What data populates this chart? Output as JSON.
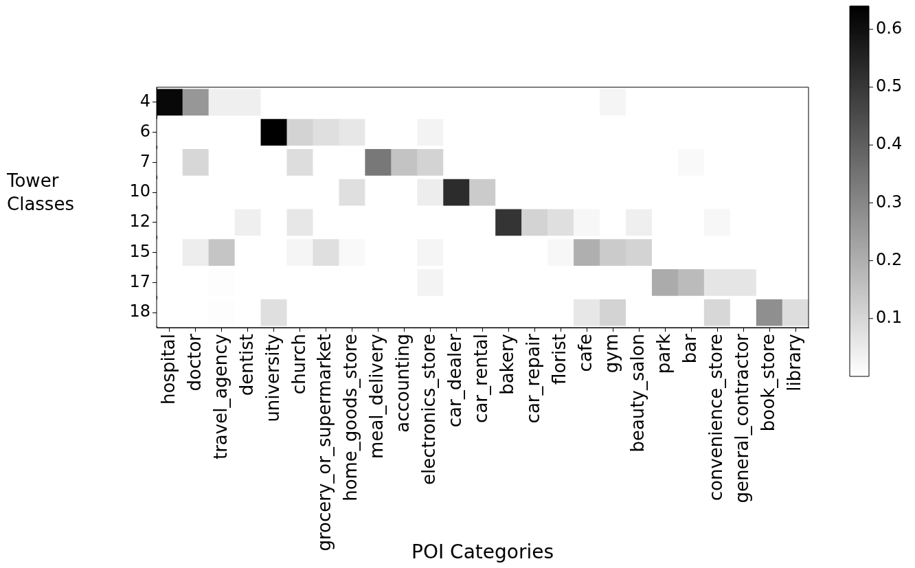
{
  "chart_data": {
    "type": "heatmap",
    "xlabel": "POI Categories",
    "ylabel": "Tower Classes",
    "categories": [
      "hospital",
      "doctor",
      "travel_agency",
      "dentist",
      "university",
      "church",
      "grocery_or_supermarket",
      "home_goods_store",
      "meal_delivery",
      "accounting",
      "electronics_store",
      "car_dealer",
      "car_rental",
      "bakery",
      "car_repair",
      "florist",
      "cafe",
      "gym",
      "beauty_salon",
      "park",
      "bar",
      "convenience_store",
      "general_contractor",
      "book_store",
      "library"
    ],
    "y_categories": [
      "4",
      "6",
      "7",
      "10",
      "12",
      "15",
      "17",
      "18"
    ],
    "cells": [
      [
        0.62,
        0.26,
        0.04,
        0.04,
        0,
        0,
        0,
        0,
        0,
        0,
        0,
        0,
        0,
        0,
        0,
        0,
        0,
        0.025,
        0,
        0,
        0,
        0,
        0,
        0,
        0
      ],
      [
        0,
        0,
        0,
        0,
        0.64,
        0.11,
        0.08,
        0.06,
        0,
        0,
        0.03,
        0,
        0,
        0,
        0,
        0,
        0,
        0,
        0,
        0,
        0,
        0,
        0,
        0,
        0
      ],
      [
        0,
        0.1,
        0,
        0,
        0,
        0.085,
        0,
        0,
        0.34,
        0.15,
        0.11,
        0,
        0,
        0,
        0,
        0,
        0,
        0,
        0,
        0,
        0.015,
        0,
        0,
        0,
        0
      ],
      [
        0,
        0,
        0,
        0,
        0,
        0,
        0,
        0.08,
        0,
        0,
        0.045,
        0.53,
        0.13,
        0,
        0,
        0,
        0,
        0,
        0,
        0,
        0,
        0,
        0,
        0,
        0
      ],
      [
        0,
        0,
        0,
        0.04,
        0,
        0.06,
        0,
        0,
        0,
        0,
        0,
        0,
        0,
        0.51,
        0.11,
        0.08,
        0.02,
        0,
        0.04,
        0,
        0,
        0.02,
        0,
        0,
        0
      ],
      [
        0,
        0.045,
        0.145,
        0,
        0,
        0.025,
        0.08,
        0.015,
        0,
        0,
        0.025,
        0,
        0,
        0,
        0,
        0.02,
        0.2,
        0.13,
        0.11,
        0,
        0,
        0,
        0,
        0,
        0
      ],
      [
        0,
        0,
        0.005,
        0,
        0,
        0,
        0,
        0,
        0,
        0,
        0.03,
        0,
        0,
        0,
        0,
        0,
        0,
        0,
        0,
        0.21,
        0.17,
        0.065,
        0.065,
        0,
        0
      ],
      [
        0,
        0,
        0.005,
        0,
        0.08,
        0,
        0,
        0,
        0,
        0,
        0,
        0,
        0,
        0,
        0,
        0,
        0.06,
        0.11,
        0,
        0,
        0,
        0.1,
        0,
        0.28,
        0.085
      ]
    ],
    "clim": [
      0,
      0.64
    ],
    "cticks": [
      0.1,
      0.2,
      0.3,
      0.4,
      0.5,
      0.6
    ]
  }
}
